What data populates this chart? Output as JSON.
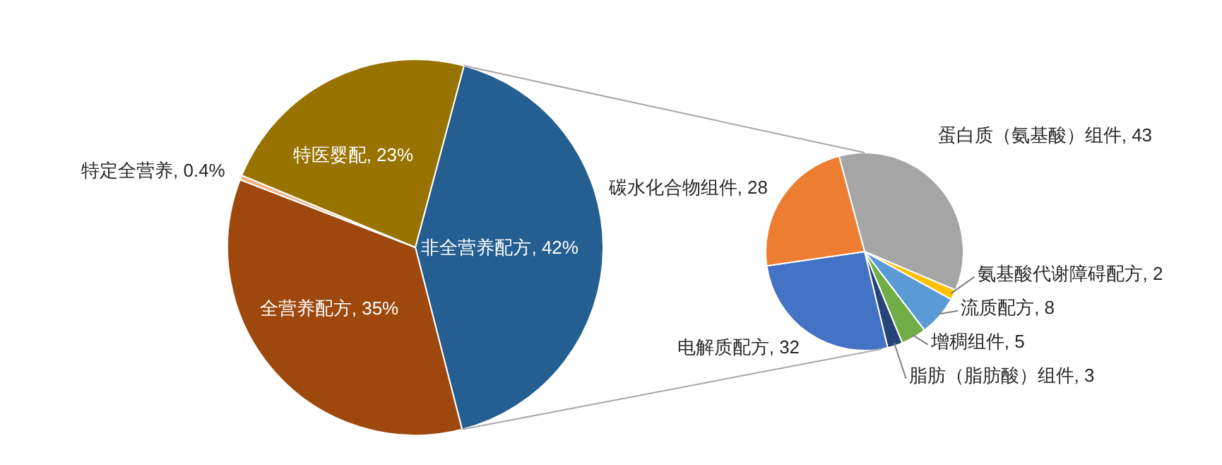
{
  "chart_data": [
    {
      "type": "pie",
      "categories": [
        "非全营养配方",
        "全营养配方",
        "特定全营养",
        "特医婴配"
      ],
      "values": [
        42,
        35,
        0.4,
        23
      ],
      "value_labels": [
        "42%",
        "35%",
        "0.4%",
        "23%"
      ],
      "colors": [
        "#255e91",
        "#9e480e",
        "#f4b183",
        "#997300"
      ]
    },
    {
      "type": "pie",
      "categories": [
        "蛋白质（氨基酸）组件",
        "氨基酸代谢障碍配方",
        "流质配方",
        "增稠组件",
        "脂肪（脂肪酸）组件",
        "电解质配方",
        "碳水化合物组件"
      ],
      "values": [
        43,
        2,
        8,
        5,
        3,
        32,
        28
      ],
      "value_labels": [
        "43",
        "2",
        "8",
        "5",
        "3",
        "32",
        "28"
      ],
      "colors": [
        "#a5a5a5",
        "#ffc000",
        "#5b9bd5",
        "#70ad47",
        "#264478",
        "#4472c4",
        "#ed7d31"
      ]
    }
  ]
}
